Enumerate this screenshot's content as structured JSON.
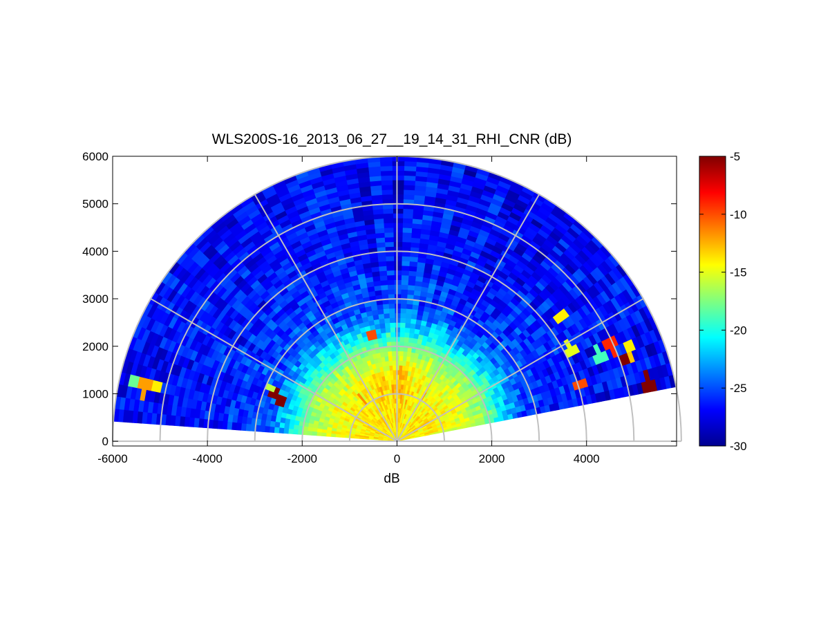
{
  "chart_data": {
    "type": "heatmap",
    "subtype": "polar-rhi",
    "title": "WLS200S-16_2013_06_27__19_14_31_RHI_CNR (dB)",
    "xlabel": "dB",
    "ylabel": "",
    "xlim": [
      -6000,
      5900
    ],
    "ylim": [
      -100,
      6000
    ],
    "x_ticks": [
      -6000,
      -4000,
      -2000,
      0,
      2000,
      4000
    ],
    "y_ticks": [
      0,
      1000,
      2000,
      3000,
      4000,
      5000,
      6000
    ],
    "colorbar": {
      "colormap": "jet",
      "range": [
        -30,
        -5
      ],
      "ticks": [
        -30,
        -25,
        -20,
        -15,
        -10,
        -5
      ]
    },
    "range_rings": [
      1000,
      2000,
      3000,
      4000,
      5000,
      6000
    ],
    "spoke_angles_deg": [
      0,
      30,
      60,
      90,
      120,
      150,
      180
    ],
    "scan_sector_deg": [
      11,
      175
    ],
    "max_range": 6000,
    "grid": true,
    "field_profile": [
      {
        "range": 200,
        "cnr": -14
      },
      {
        "range": 800,
        "cnr": -14
      },
      {
        "range": 1400,
        "cnr": -15
      },
      {
        "range": 1900,
        "cnr": -17
      },
      {
        "range": 2300,
        "cnr": -21
      },
      {
        "range": 2800,
        "cnr": -25
      },
      {
        "range": 4000,
        "cnr": -26.5
      },
      {
        "range": 6000,
        "cnr": -27
      }
    ],
    "hot_spots": [
      {
        "range": 1450,
        "angle_deg": 88,
        "cnr": -12
      },
      {
        "range": 1150,
        "angle_deg": 130,
        "cnr": -11.5
      },
      {
        "range": 1100,
        "angle_deg": 60,
        "cnr": -12
      },
      {
        "range": 1100,
        "angle_deg": 107,
        "cnr": -12
      },
      {
        "range": 2300,
        "angle_deg": 103,
        "cnr": -10
      },
      {
        "range": 2750,
        "angle_deg": 159,
        "cnr": -5
      },
      {
        "range": 2600,
        "angle_deg": 161,
        "cnr": -5
      },
      {
        "range": 2850,
        "angle_deg": 157,
        "cnr": -16
      },
      {
        "range": 5450,
        "angle_deg": 13,
        "cnr": -5
      },
      {
        "range": 5100,
        "angle_deg": 20,
        "cnr": -5
      },
      {
        "range": 5300,
        "angle_deg": 22,
        "cnr": -14
      },
      {
        "range": 5150,
        "angle_deg": 19.5,
        "cnr": -13
      },
      {
        "range": 4950,
        "angle_deg": 24,
        "cnr": -9
      },
      {
        "range": 4350,
        "angle_deg": 37,
        "cnr": -14
      },
      {
        "range": 4050,
        "angle_deg": 17,
        "cnr": -10
      },
      {
        "range": 4650,
        "angle_deg": 23,
        "cnr": -19
      },
      {
        "range": 4150,
        "angle_deg": 28,
        "cnr": -15
      },
      {
        "range": 5450,
        "angle_deg": 168,
        "cnr": -12
      },
      {
        "range": 5700,
        "angle_deg": 167.5,
        "cnr": -18
      },
      {
        "range": 5250,
        "angle_deg": 167,
        "cnr": -14
      }
    ]
  }
}
